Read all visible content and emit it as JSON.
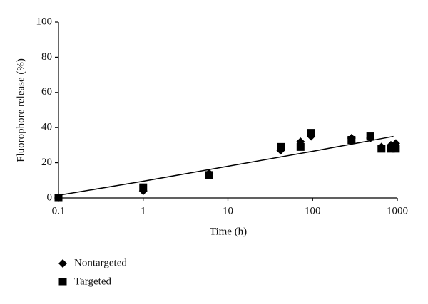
{
  "chart_data": {
    "type": "scatter",
    "x_label": "Time (h)",
    "y_label": "Fluorophore release (%)",
    "xscale": "log",
    "xlim": [
      0.1,
      1000
    ],
    "xticks": [
      0.1,
      1,
      10,
      100,
      1000
    ],
    "ylim": [
      0,
      100
    ],
    "yticks": [
      0,
      20,
      40,
      60,
      80,
      100
    ],
    "series": [
      {
        "name": "Nontargeted",
        "marker": "diamond",
        "color": "#000000",
        "x": [
          0.1,
          1,
          6,
          42,
          72,
          96,
          288,
          480,
          650,
          840,
          960
        ],
        "values": [
          0,
          4,
          14,
          27,
          32,
          35,
          34,
          34,
          29,
          30,
          31
        ]
      },
      {
        "name": "Targeted",
        "marker": "square",
        "color": "#000000",
        "x": [
          0.1,
          1,
          6,
          42,
          72,
          96,
          288,
          480,
          650,
          840,
          960
        ],
        "values": [
          0,
          6,
          13,
          29,
          29,
          37,
          33,
          35,
          28,
          28,
          28
        ]
      }
    ],
    "fit_line": {
      "color": "#000000",
      "x": [
        0.1,
        1,
        10,
        100,
        900
      ],
      "values": [
        1.5,
        9.5,
        18,
        26.5,
        35
      ]
    }
  }
}
